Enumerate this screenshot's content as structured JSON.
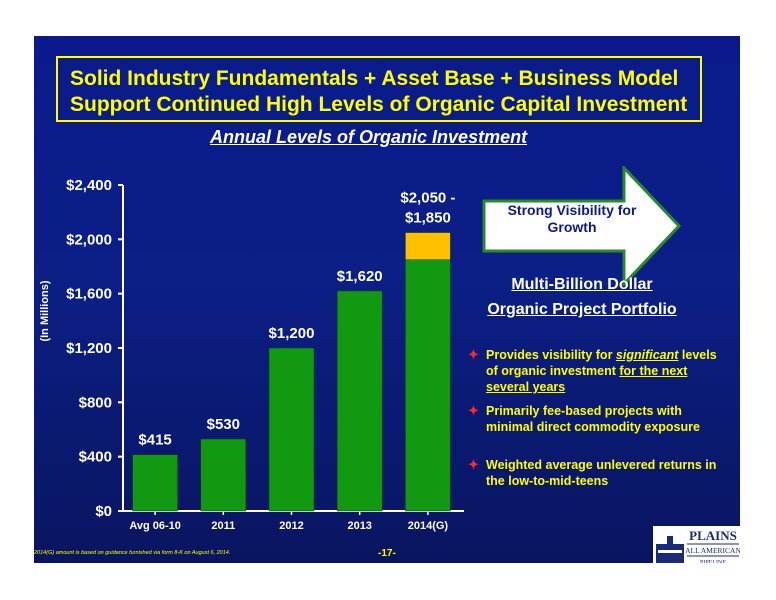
{
  "title": {
    "line1": "Solid Industry Fundamentals + Asset Base + Business Model",
    "line2": "Support Continued High Levels of Organic Capital Investment"
  },
  "subtitle": "Annual Levels of Organic Investment",
  "chart_data": {
    "type": "bar",
    "categories": [
      "Avg 06-10",
      "2011",
      "2012",
      "2013",
      "2014(G)"
    ],
    "series": [
      {
        "values": [
          415,
          530,
          1200,
          1620,
          1850
        ],
        "color": "#119911"
      },
      {
        "values": [
          0,
          0,
          0,
          0,
          200
        ],
        "color": "#ffc000"
      }
    ],
    "data_labels": [
      "$415",
      "$530",
      "$1,200",
      "$1,620",
      "$2,050 -\n$1,850"
    ],
    "ylabel": "(In Millions)",
    "ylim": [
      0,
      2400
    ],
    "yticks": [
      0,
      400,
      800,
      1200,
      1600,
      2000,
      2400
    ],
    "ytick_labels": [
      "$0",
      "$400",
      "$800",
      "$1,200",
      "$1,600",
      "$2,000",
      "$2,400"
    ],
    "grid": false
  },
  "callout": "Strong Visibility for Growth",
  "portfolio": {
    "line1": "Multi-Billion Dollar",
    "line2": "Organic Project Portfolio"
  },
  "bullets": {
    "b1_a": "Provides visibility for ",
    "b1_b": "significant",
    "b1_c": " levels of organic investment ",
    "b1_d": "for the next several years",
    "b2": "Primarily fee-based projects with minimal direct commodity exposure",
    "b3": "Weighted average unlevered returns in the low-to-mid-teens",
    "mark": "✦"
  },
  "footnote": "2014(G) amount is based on guidance furnished via form 8-K on August 6, 2014.",
  "page_number": "-17-",
  "logo": {
    "line1": "PLAINS",
    "line2": "ALL AMERICAN",
    "line3": "PIPELINE"
  },
  "colors": {
    "background_blue": "#0a1a8c",
    "title_yellow": "#ffff00",
    "bar_green": "#119911",
    "bar_gold": "#ffc000",
    "bullet_red": "#ff2a2a",
    "logo_navy": "#1a2a78"
  }
}
